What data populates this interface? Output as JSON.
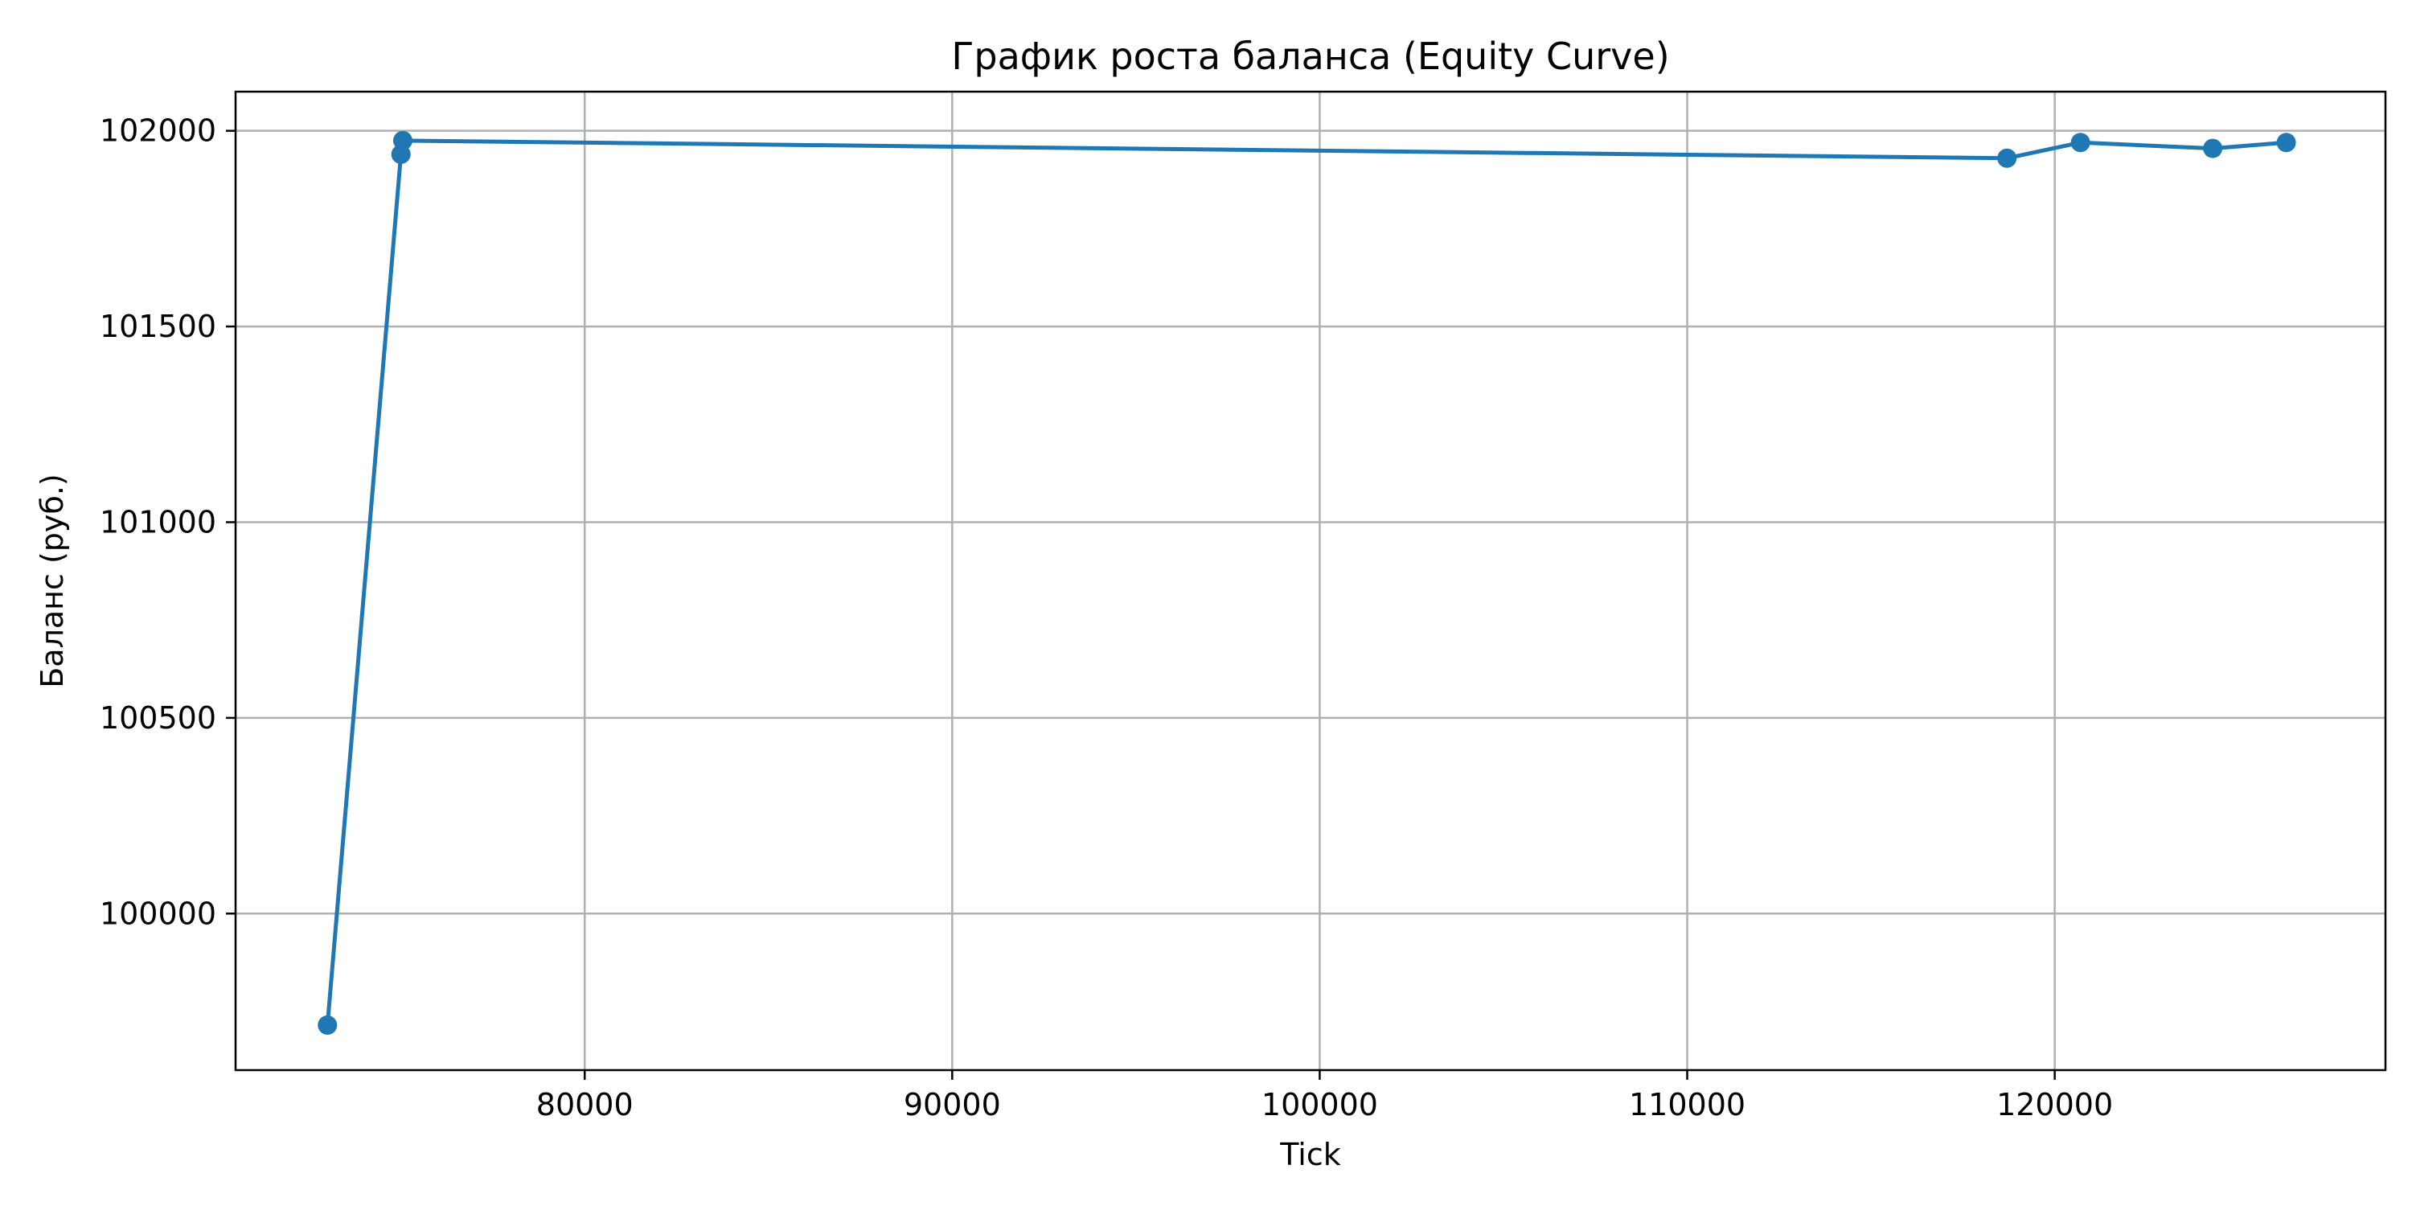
{
  "chart_data": {
    "type": "line",
    "title": "График роста баланса (Equity Curve)",
    "xlabel": "Tick",
    "ylabel": "Баланс (руб.)",
    "xlim": [
      70500,
      129000
    ],
    "ylim": [
      99600,
      102100
    ],
    "x_ticks": [
      80000,
      90000,
      100000,
      110000,
      120000
    ],
    "x_tick_labels": [
      "80000",
      "90000",
      "100000",
      "110000",
      "120000"
    ],
    "y_ticks": [
      100000,
      100500,
      101000,
      101500,
      102000
    ],
    "y_tick_labels": [
      "100000",
      "100500",
      "101000",
      "101500",
      "102000"
    ],
    "grid": true,
    "markers": true,
    "series": [
      {
        "color": "#1f77b4",
        "x": [
          73000,
          75000,
          75050,
          118700,
          120700,
          124300,
          126300
        ],
        "y": [
          99715,
          101940,
          101975,
          101930,
          101970,
          101955,
          101970
        ]
      }
    ]
  }
}
